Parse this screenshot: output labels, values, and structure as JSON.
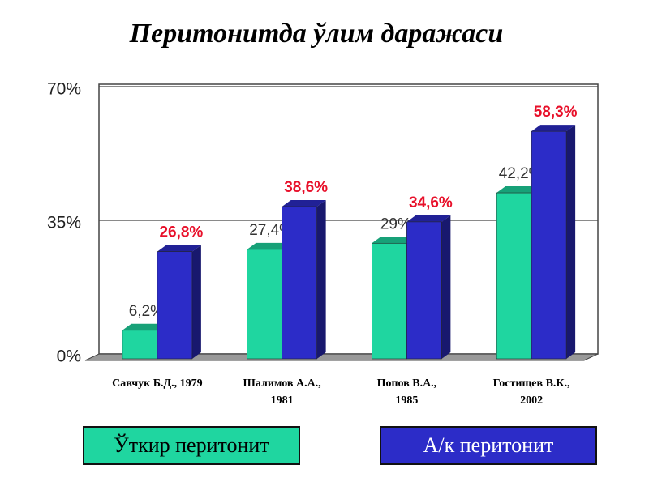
{
  "chart_data": {
    "type": "bar3d",
    "title": "Перитонитда ўлим даражаси",
    "categories": [
      [
        "Савчук Б.Д., 1979"
      ],
      [
        "Шалимов А.А.,",
        "1981"
      ],
      [
        "Попов В.А.,",
        "1985"
      ],
      [
        "Гостищев В.К.,",
        "2002"
      ]
    ],
    "series": [
      {
        "name": "Ўткир перитонит",
        "color": "#1fd6a0",
        "label_color": "#333333",
        "values": [
          6.2,
          27.4,
          29,
          42.2
        ],
        "value_labels": [
          "6,2%",
          "27,4%",
          "29%",
          "42,2%"
        ]
      },
      {
        "name": "А/к перитонит",
        "color": "#2c2cc8",
        "label_color": "#e8102a",
        "values": [
          26.8,
          38.6,
          34.6,
          58.3
        ],
        "value_labels": [
          "26,8%",
          "38,6%",
          "34,6%",
          "58,3%"
        ]
      }
    ],
    "ylim": [
      0,
      70
    ],
    "yticks": [
      {
        "value": 0,
        "label": "0%"
      },
      {
        "value": 35,
        "label": "35%"
      },
      {
        "value": 70,
        "label": "70%"
      }
    ],
    "grid": true
  }
}
